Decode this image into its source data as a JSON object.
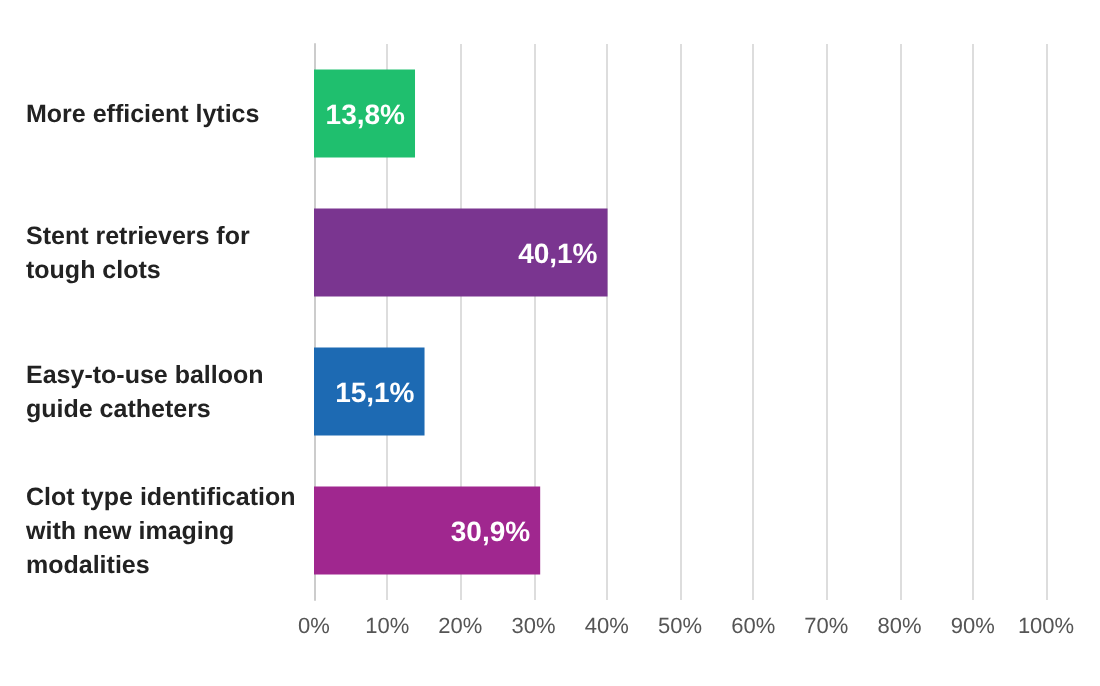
{
  "chart_data": {
    "type": "bar",
    "orientation": "horizontal",
    "categories": [
      "More efficient lytics",
      "Stent retrievers for tough clots",
      "Easy-to-use balloon guide catheters",
      "Clot type identification with new imaging modalities"
    ],
    "values": [
      13.8,
      40.1,
      15.1,
      30.9
    ],
    "colors": [
      "#1fbf6e",
      "#7a3590",
      "#1d6ab3",
      "#a0278f"
    ],
    "value_labels": [
      "13,8%",
      "40,1%",
      "15,1%",
      "30,9%"
    ],
    "xlim": [
      0,
      100
    ],
    "xticks": [
      {
        "value": 0,
        "label": "0%"
      },
      {
        "value": 10,
        "label": "10%"
      },
      {
        "value": 20,
        "label": "20%"
      },
      {
        "value": 30,
        "label": "30%"
      },
      {
        "value": 40,
        "label": "40%"
      },
      {
        "value": 50,
        "label": "50%"
      },
      {
        "value": 60,
        "label": "60%"
      },
      {
        "value": 70,
        "label": "70%"
      },
      {
        "value": 80,
        "label": "80%"
      },
      {
        "value": 90,
        "label": "90%"
      },
      {
        "value": 100,
        "label": "100%"
      }
    ],
    "grid": "x"
  }
}
